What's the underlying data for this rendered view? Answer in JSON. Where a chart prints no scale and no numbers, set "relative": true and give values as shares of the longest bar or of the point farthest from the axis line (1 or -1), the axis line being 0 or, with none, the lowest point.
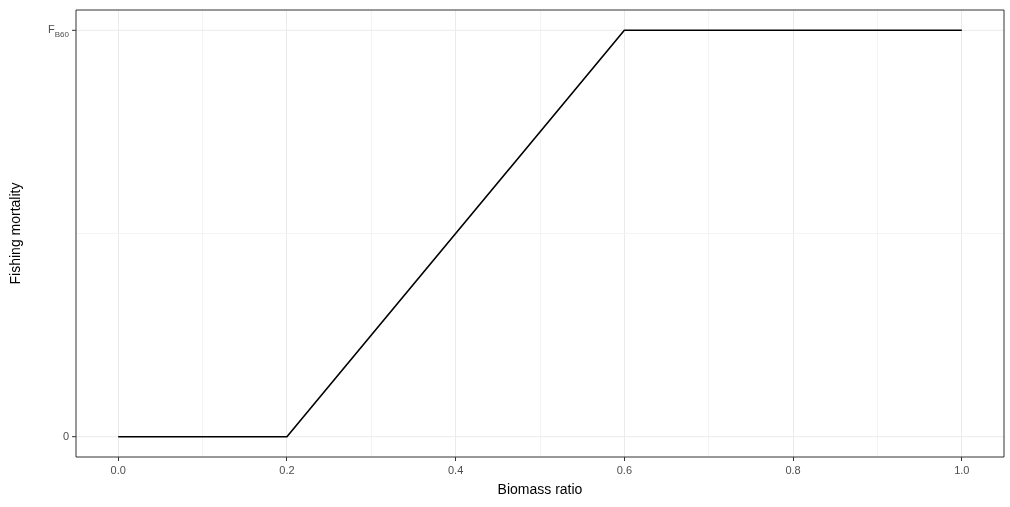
{
  "chart_data": {
    "type": "line",
    "xlabel": "Biomass ratio",
    "ylabel": "Fishing mortality",
    "x": [
      0,
      0.2,
      0.6,
      1.0
    ],
    "series": [
      {
        "color": "#000000",
        "values": [
          0,
          0,
          1,
          1
        ]
      }
    ],
    "relative": true,
    "xlim": [
      -0.05,
      1.05
    ],
    "xticks": [
      {
        "value": 0,
        "label": "0.0"
      },
      {
        "value": 0.1,
        "label": null
      },
      {
        "value": 0.2,
        "label": "0.2"
      },
      {
        "value": 0.3,
        "label": null
      },
      {
        "value": 0.4,
        "label": "0.4"
      },
      {
        "value": 0.5,
        "label": null
      },
      {
        "value": 0.6,
        "label": "0.6"
      },
      {
        "value": 0.7,
        "label": null
      },
      {
        "value": 0.8,
        "label": "0.8"
      },
      {
        "value": 0.9,
        "label": null
      },
      {
        "value": 1.0,
        "label": "1.0"
      }
    ],
    "annotations": [
      "0",
      "F$_{B60}$"
    ],
    "grid": true,
    "legend": false
  }
}
